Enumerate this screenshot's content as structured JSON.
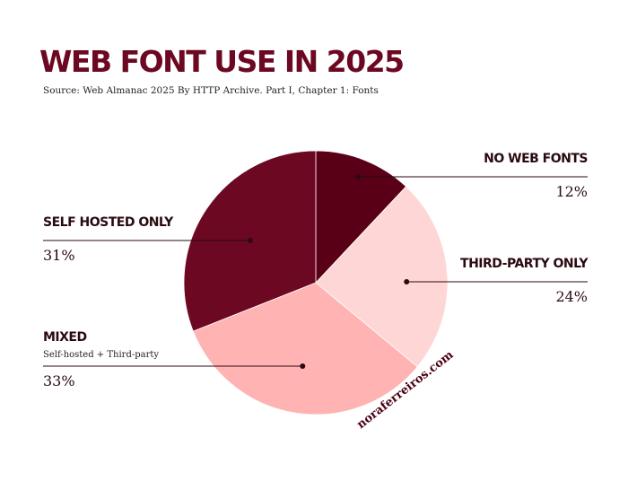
{
  "chart_data": {
    "type": "pie",
    "title": "WEB FONT USE IN 2025",
    "subtitle": "Source: Web Almanac 2025 By HTTP Archive. Part I, Chapter 1: Fonts",
    "categories": [
      "NO WEB FONTS",
      "THIRD-PARTY ONLY",
      "MIXED",
      "SELF HOSTED ONLY"
    ],
    "category_notes": [
      null,
      null,
      "Self-hosted + Third-party",
      null
    ],
    "values": [
      12,
      24,
      33,
      31
    ],
    "value_labels": [
      "12%",
      "24%",
      "33%",
      "31%"
    ],
    "colors": [
      "#5a0016",
      "#ffd6d6",
      "#ffb3b3",
      "#6d0822"
    ],
    "watermark": "noraferreiros.com"
  }
}
